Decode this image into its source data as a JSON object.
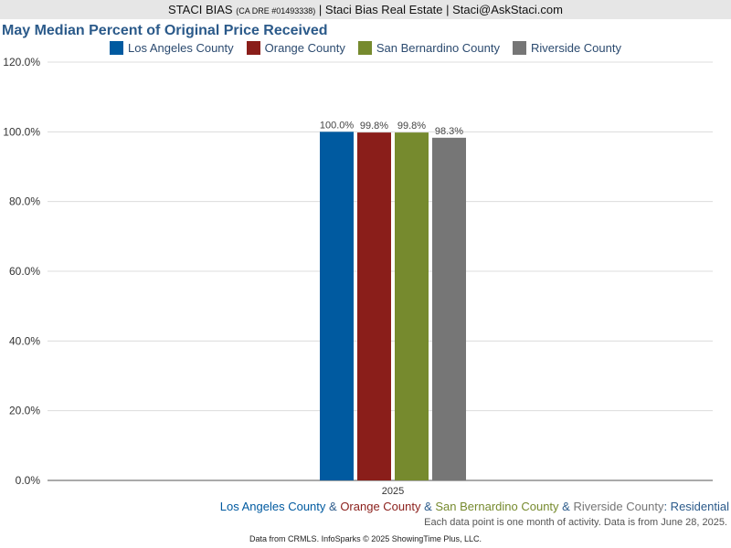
{
  "header": {
    "name": "STACI BIAS",
    "license": "(CA DRE #01493338)",
    "company": "| Staci Bias Real Estate | Staci@AskStaci.com"
  },
  "chart_data": {
    "type": "bar",
    "title": "May Median Percent of Original Price Received",
    "categories": [
      "2025"
    ],
    "series": [
      {
        "name": "Los Angeles County",
        "values": [
          100.0
        ],
        "color": "#005aa0"
      },
      {
        "name": "Orange County",
        "values": [
          99.8
        ],
        "color": "#8a1e1a"
      },
      {
        "name": "San Bernardino County",
        "values": [
          99.8
        ],
        "color": "#768a2e"
      },
      {
        "name": "Riverside County",
        "values": [
          98.3
        ],
        "color": "#767676"
      }
    ],
    "data_labels": [
      "100.0%",
      "99.8%",
      "99.8%",
      "98.3%"
    ],
    "yticks": [
      0,
      20,
      40,
      60,
      80,
      100,
      120
    ],
    "ytick_labels": [
      "0.0%",
      "20.0%",
      "40.0%",
      "60.0%",
      "80.0%",
      "100.0%",
      "120.0%"
    ],
    "ylim": [
      0,
      120
    ],
    "grid": true,
    "legend": "top-center"
  },
  "subtitle": {
    "parts": [
      {
        "text": "Los Angeles County",
        "color": "#005aa0"
      },
      {
        "text": " & ",
        "color": "#2b5a8a"
      },
      {
        "text": "Orange County",
        "color": "#8a1e1a"
      },
      {
        "text": " & ",
        "color": "#2b5a8a"
      },
      {
        "text": "San Bernardino County",
        "color": "#768a2e"
      },
      {
        "text": " & ",
        "color": "#2b5a8a"
      },
      {
        "text": "Riverside County",
        "color": "#767676"
      },
      {
        "text": ": Residential",
        "color": "#2b5a8a"
      }
    ]
  },
  "note": "Each data point is one month of activity. Data is from June 28, 2025.",
  "footer": "Data from CRMLS. InfoSparks © 2025 ShowingTime Plus, LLC."
}
